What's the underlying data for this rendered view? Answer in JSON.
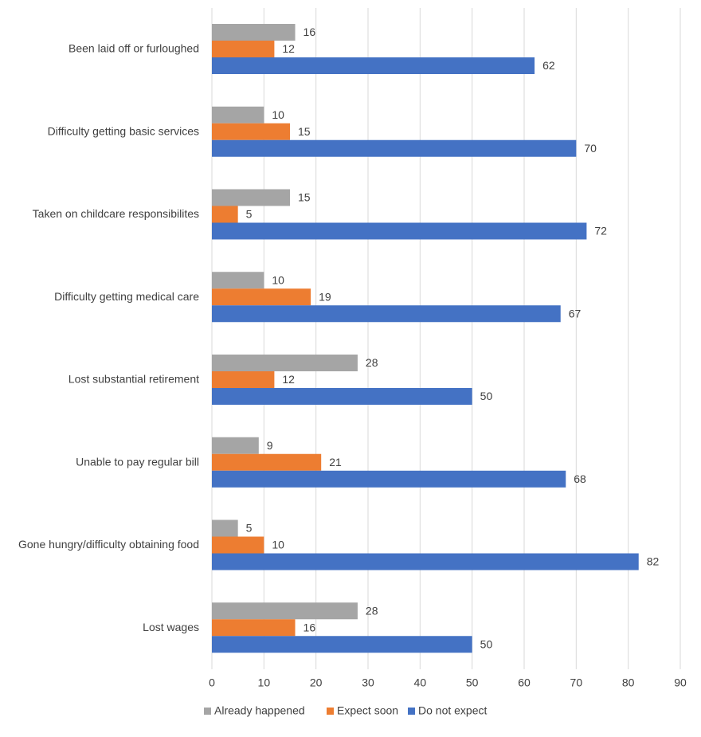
{
  "chart_data": {
    "type": "hbar",
    "categories": [
      "Been laid off or furloughed",
      "Difficulty getting basic services",
      "Taken on childcare responsibilites",
      "Difficulty getting medical care",
      "Lost substantial retirement",
      "Unable to pay regular bill",
      "Gone hungry/difficulty obtaining food",
      "Lost wages"
    ],
    "series": [
      {
        "name": "Already happened",
        "color": "#a5a5a5",
        "values": [
          16,
          10,
          15,
          10,
          28,
          9,
          5,
          28
        ]
      },
      {
        "name": "Expect soon",
        "color": "#ed7d31",
        "values": [
          12,
          15,
          5,
          19,
          12,
          21,
          10,
          16
        ]
      },
      {
        "name": "Do not expect",
        "color": "#4472c4",
        "values": [
          62,
          70,
          72,
          67,
          50,
          68,
          82,
          50
        ]
      }
    ],
    "xlim": [
      0,
      90
    ],
    "xticks": [
      0,
      10,
      20,
      30,
      40,
      50,
      60,
      70,
      80,
      90
    ],
    "grid": true,
    "legend": "bottom"
  }
}
